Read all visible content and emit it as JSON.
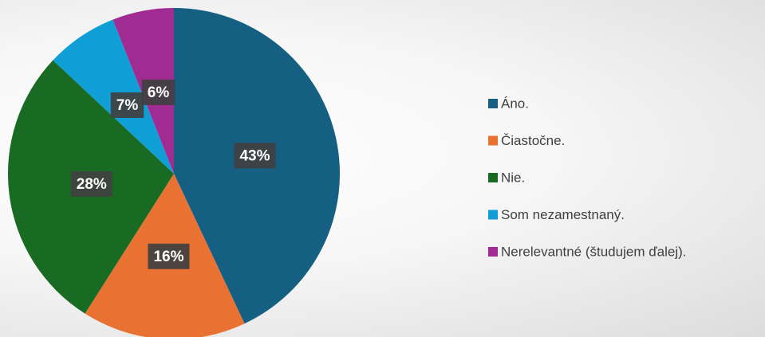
{
  "chart_data": {
    "type": "pie",
    "categories": [
      "Áno.",
      "Čiastočne.",
      "Nie.",
      "Som nezamestnaný.",
      "Nerelevantné (študujem ďalej)."
    ],
    "values": [
      43,
      16,
      28,
      7,
      6
    ],
    "value_labels": [
      "43%",
      "16%",
      "28%",
      "7%",
      "6%"
    ],
    "colors": [
      "#156082",
      "#e97132",
      "#196b24",
      "#0f9ed5",
      "#a02b93"
    ],
    "legend": "right"
  }
}
